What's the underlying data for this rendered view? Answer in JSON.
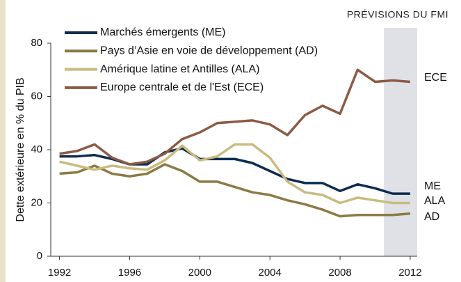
{
  "chart_data": {
    "type": "line",
    "annotation": "PRÉVISIONS DU FMI",
    "y_label": "Dette extérieure en % du PIB",
    "x": [
      1992,
      1993,
      1994,
      1995,
      1996,
      1997,
      1998,
      1999,
      2000,
      2001,
      2002,
      2003,
      2004,
      2005,
      2006,
      2007,
      2008,
      2009,
      2010,
      2011,
      2012
    ],
    "xlim": [
      1991.5,
      2012.4
    ],
    "xticks": [
      1992,
      1996,
      2000,
      2004,
      2008,
      2012
    ],
    "ylim": [
      0,
      80
    ],
    "yticks": [
      0,
      20,
      40,
      60,
      80
    ],
    "forecast_span": [
      2010.5,
      2012.4
    ],
    "forecast_color": "#dfe1e7",
    "series": [
      {
        "name": "Marchés émergents (ME)",
        "end_label": "ME",
        "color": "#0d2d4f",
        "values": [
          37.5,
          37.5,
          38,
          36.5,
          34.5,
          34.5,
          39,
          40.5,
          36.5,
          36.5,
          36.5,
          35,
          32,
          29,
          27.5,
          27.5,
          24.5,
          27,
          25.5,
          23.5,
          23.5
        ]
      },
      {
        "name": "Pays d’Asie en voie de développement (AD)",
        "end_label": "AD",
        "color": "#8c7a45",
        "values": [
          31,
          31.5,
          34,
          31,
          30,
          31,
          34.5,
          32,
          28,
          28,
          26,
          24,
          23,
          21,
          19.5,
          17.5,
          15,
          15.5,
          15.5,
          15.5,
          16
        ]
      },
      {
        "name": "Amérique latine et Antilles (ALA)",
        "end_label": "ALA",
        "color": "#c9bb7e",
        "values": [
          35.5,
          34,
          32.5,
          34,
          33,
          32.5,
          36,
          41.5,
          36,
          37.5,
          42,
          42,
          37,
          28,
          24,
          23,
          20,
          22,
          21,
          20,
          20
        ]
      },
      {
        "name": "Europe centrale et de l'Est (ECE)",
        "end_label": "ECE",
        "color": "#8c5a44",
        "values": [
          38.5,
          39.5,
          42,
          37,
          34.5,
          35.5,
          38.5,
          44,
          46.5,
          50,
          50.5,
          51,
          49.5,
          45.5,
          53,
          56.5,
          53.5,
          70,
          65.5,
          66,
          65.5
        ]
      }
    ]
  }
}
